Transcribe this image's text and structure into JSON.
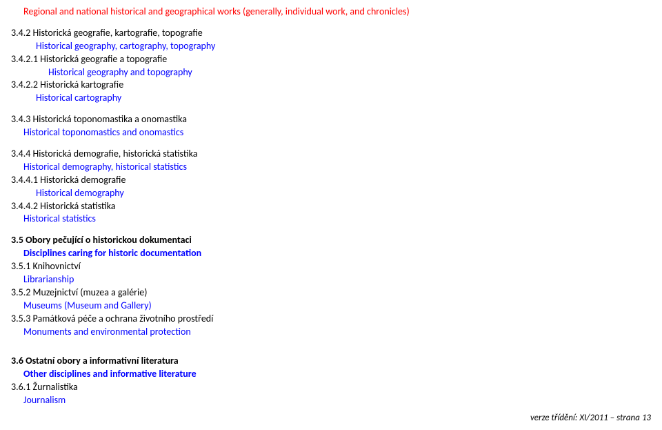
{
  "top_note": "Regional and national historical and geographical works (generally, individual work, and chronicles)",
  "sections": {
    "s342": {
      "cz": "3.4.2 Historická geografie, kartografie, topografie",
      "en": "Historical geography, cartography, topography"
    },
    "s3421": {
      "cz": "3.4.2.1 Historická geografie a topografie",
      "en": "Historical geography and topography"
    },
    "s3422": {
      "cz": "3.4.2.2 Historická kartografie",
      "en": "Historical cartography"
    },
    "s343": {
      "cz": "3.4.3 Historická toponomastika a onomastika",
      "en": "Historical toponomastics and onomastics"
    },
    "s344": {
      "cz": "3.4.4 Historická demografie, historická statistika",
      "en": "Historical demography, historical statistics"
    },
    "s3441": {
      "cz": "3.4.4.1 Historická demografie",
      "en": "Historical demography"
    },
    "s3442": {
      "cz": "3.4.4.2 Historická statistika",
      "en": "Historical statistics"
    },
    "s35": {
      "cz": "3.5 Obory pečující o historickou dokumentaci",
      "en": "Disciplines caring for historic documentation"
    },
    "s351": {
      "cz": "3.5.1 Knihovnictví",
      "en": "Librarianship"
    },
    "s352": {
      "cz": "3.5.2 Muzejnictví (muzea a galérie)",
      "en": "Museums (Museum and Gallery)"
    },
    "s353": {
      "cz": "3.5.3 Památková péče a ochrana životního prostředí",
      "en": "Monuments and environmental protection"
    },
    "s36": {
      "cz": "3.6 Ostatní obory a informativní literatura",
      "en": "Other disciplines and informative literature"
    },
    "s361": {
      "cz": "3.6.1 Žurnalistika",
      "en": "Journalism"
    }
  },
  "footer": "verze třídění:  XI/2011  –  strana  13"
}
